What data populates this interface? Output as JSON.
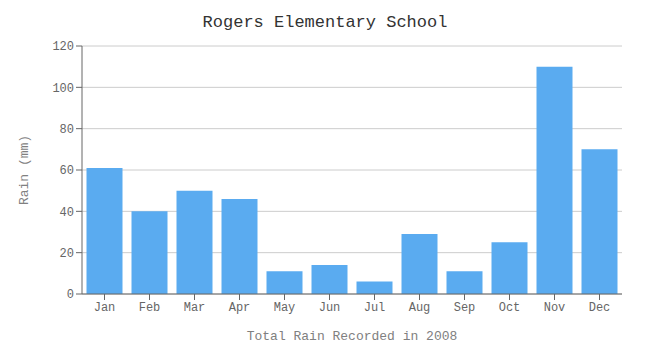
{
  "chart_data": {
    "type": "bar",
    "title": "Rogers Elementary School",
    "xlabel": "Total Rain Recorded in 2008",
    "ylabel": "Rain (mm)",
    "categories": [
      "Jan",
      "Feb",
      "Mar",
      "Apr",
      "May",
      "Jun",
      "Jul",
      "Aug",
      "Sep",
      "Oct",
      "Nov",
      "Dec"
    ],
    "values": [
      61,
      40,
      50,
      46,
      11,
      14,
      6,
      29,
      11,
      25,
      110,
      70
    ],
    "color": "#5aabf0",
    "ylim": [
      0,
      120
    ],
    "yticks": [
      0,
      20,
      40,
      60,
      80,
      100,
      120
    ],
    "grid": true
  }
}
